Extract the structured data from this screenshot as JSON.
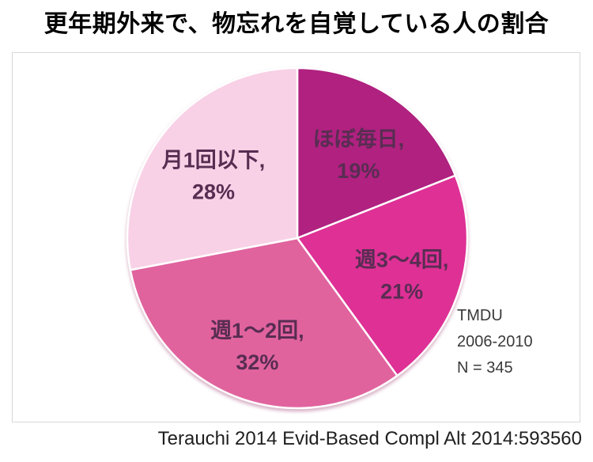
{
  "title": "更年期外来で、物忘れを自覚している人の割合",
  "chart_data": {
    "type": "pie",
    "title": "更年期外来で、物忘れを自覚している人の割合",
    "unit": "%",
    "start_angle_deg": 0,
    "direction": "clockwise",
    "legend": "none",
    "label_format": "{label}, {value}%",
    "label_color": "#582D52",
    "slices": [
      {
        "label": "ほぼ毎日",
        "value": 19,
        "color": "#B02180"
      },
      {
        "label": "週3～4回",
        "value": 21,
        "color": "#DE3095"
      },
      {
        "label": "週1～2回",
        "value": 32,
        "color": "#E0639E"
      },
      {
        "label": "月1回以下",
        "value": 28,
        "color": "#F8D1E6"
      }
    ],
    "annotation": {
      "lines": [
        "TMDU",
        "2006-2010",
        "N = 345"
      ]
    }
  },
  "citation": "Terauchi 2014 Evid-Based Compl Alt 2014:593560"
}
